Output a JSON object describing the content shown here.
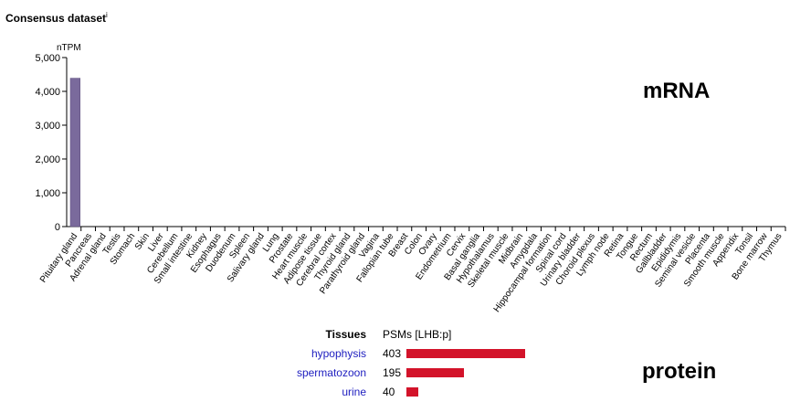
{
  "title": "Consensus dataset",
  "title_sup": "i",
  "mrna_label": "mRNA",
  "protein_label": "protein",
  "chart_data": {
    "type": "bar",
    "ylabel": "nTPM",
    "ylim": [
      0,
      5000
    ],
    "yticks": [
      "0",
      "1,000",
      "2,000",
      "3,000",
      "4,000",
      "5,000"
    ],
    "bar_color": "#7a6a9c",
    "categories": [
      "Pituitary gland",
      "Pancreas",
      "Adrenal gland",
      "Testis",
      "Stomach",
      "Skin",
      "Liver",
      "Cerebellum",
      "Small intestine",
      "Kidney",
      "Esophagus",
      "Duodenum",
      "Spleen",
      "Salivary gland",
      "Lung",
      "Prostate",
      "Heart muscle",
      "Adipose tissue",
      "Cerebral cortex",
      "Thyroid gland",
      "Parathyroid gland",
      "Vagina",
      "Fallopian tube",
      "Breast",
      "Colon",
      "Ovary",
      "Endometrium",
      "Cervix",
      "Basal ganglia",
      "Hypothalamus",
      "Skeletal muscle",
      "Midbrain",
      "Amygdala",
      "Hippocampal formation",
      "Spinal cord",
      "Urinary bladder",
      "Choroid plexus",
      "Lymph node",
      "Retina",
      "Tongue",
      "Rectum",
      "Gallbladder",
      "Epididymis",
      "Seminal vesicle",
      "Placenta",
      "Smooth muscle",
      "Appendix",
      "Tonsil",
      "Bone marrow",
      "Thymus"
    ],
    "values": [
      4390,
      0,
      0,
      0,
      0,
      0,
      0,
      0,
      0,
      0,
      0,
      0,
      0,
      0,
      0,
      0,
      0,
      0,
      0,
      0,
      0,
      0,
      0,
      0,
      0,
      0,
      0,
      0,
      0,
      0,
      0,
      0,
      0,
      0,
      0,
      0,
      0,
      0,
      0,
      0,
      0,
      0,
      0,
      0,
      0,
      0,
      0,
      0,
      0,
      0
    ]
  },
  "protein": {
    "tissues_header": "Tissues",
    "psms_header": "PSMs [LHB:p]",
    "bar_color": "#d3132a",
    "max": 403,
    "rows": [
      {
        "tissue": "hypophysis",
        "value": 403
      },
      {
        "tissue": "spermatozoon",
        "value": 195
      },
      {
        "tissue": "urine",
        "value": 40
      }
    ]
  }
}
